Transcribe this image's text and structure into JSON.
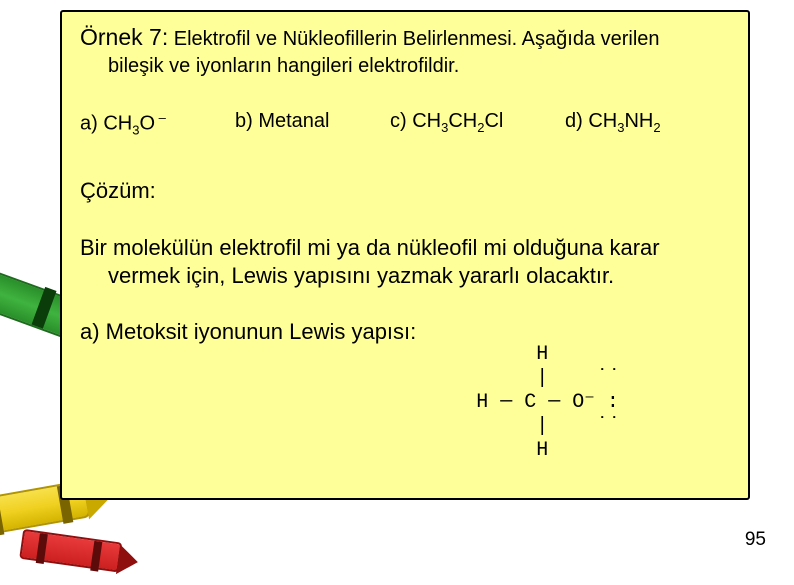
{
  "card": {
    "background_color": "#ffff99",
    "border_color": "#000000",
    "title_prefix": "Örnek 7:",
    "title_rest": " Elektrofil ve Nükleofillerin Belirlenmesi. Aşağıda verilen",
    "title_line2": "bileşik ve iyonların hangileri elektrofildir.",
    "options": {
      "a": {
        "label": "a)  CH",
        "sub1": "3",
        "mid": "O",
        "sup": " –"
      },
      "b": {
        "label": "b) Metanal"
      },
      "c": {
        "label": "c) CH",
        "sub1": "3",
        "mid1": "CH",
        "sub2": "2",
        "tail": "Cl"
      },
      "d": {
        "label": "d) CH",
        "sub1": "3",
        "mid1": "NH",
        "sub2": "2"
      }
    },
    "cozum_label": "Çözüm:",
    "paragraph_line1": "Bir molekülün elektrofil mi ya da nükleofil mi olduğuna karar",
    "paragraph_line2": "vermek için, Lewis yapısını yazmak yararlı olacaktır.",
    "lewis_label": "a) Metoksit iyonunun Lewis yapısı:",
    "lewis_struct_l1": "     H",
    "lewis_struct_l2": "     |    ˙˙",
    "lewis_struct_l3": "H ─ C ─ O⁻ :",
    "lewis_struct_l4": "     |    ˙˙",
    "lewis_struct_l5": "     H"
  },
  "page_number": "95",
  "decor": {
    "crayon_green": "#3fb33f",
    "crayon_yellow": "#f0d020",
    "crayon_red": "#cc1f1f"
  }
}
